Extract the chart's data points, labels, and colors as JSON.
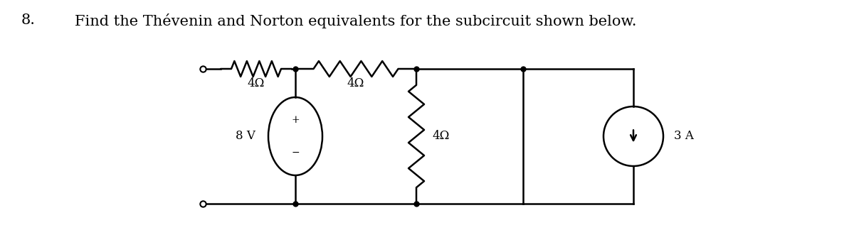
{
  "title_number": "8.",
  "title_text": "Find the Thévenin and Norton equivalents for the subcircuit shown below.",
  "title_fontsize": 15,
  "bg_color": "#ffffff",
  "line_color": "#000000",
  "line_width": 1.8,
  "resistor_label_1": "4Ω",
  "resistor_label_2": "4Ω",
  "resistor_label_3": "4Ω",
  "vsource_label": "8 V",
  "isource_label": "3 A",
  "plus_sign": "+",
  "minus_sign": "−"
}
